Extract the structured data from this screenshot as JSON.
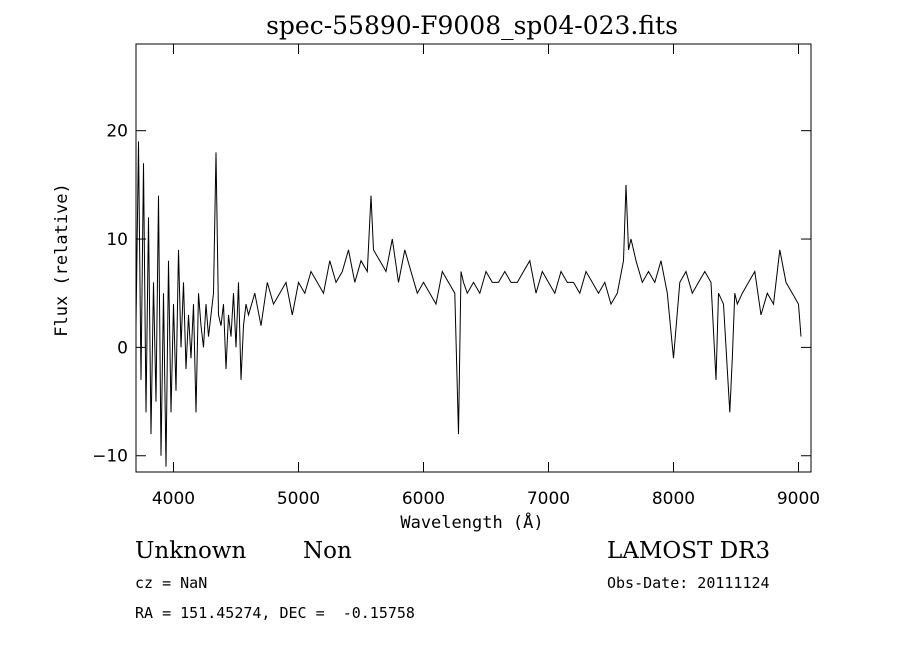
{
  "chart_data": {
    "type": "line",
    "title": "spec-55890-F9008_sp04-023.fits",
    "xlabel": "Wavelength (Å)",
    "ylabel": "Flux (relative)",
    "xlim": [
      3700,
      9100
    ],
    "ylim": [
      -11.5,
      28
    ],
    "xticks": [
      4000,
      5000,
      6000,
      7000,
      8000,
      9000
    ],
    "yticks": [
      -10,
      0,
      10,
      20
    ],
    "grid": false,
    "legend": "none",
    "line_color": "#000000",
    "x": [
      3700,
      3720,
      3740,
      3760,
      3780,
      3800,
      3820,
      3840,
      3860,
      3880,
      3900,
      3920,
      3940,
      3960,
      3980,
      4000,
      4020,
      4040,
      4060,
      4080,
      4100,
      4120,
      4140,
      4160,
      4180,
      4200,
      4220,
      4240,
      4260,
      4280,
      4300,
      4320,
      4340,
      4360,
      4380,
      4400,
      4420,
      4440,
      4460,
      4480,
      4500,
      4520,
      4540,
      4560,
      4580,
      4600,
      4650,
      4700,
      4750,
      4800,
      4850,
      4900,
      4950,
      5000,
      5050,
      5100,
      5150,
      5200,
      5250,
      5300,
      5350,
      5400,
      5450,
      5500,
      5550,
      5580,
      5600,
      5650,
      5700,
      5750,
      5800,
      5850,
      5900,
      5950,
      6000,
      6050,
      6100,
      6150,
      6200,
      6250,
      6280,
      6300,
      6320,
      6350,
      6400,
      6450,
      6500,
      6550,
      6600,
      6650,
      6700,
      6750,
      6800,
      6850,
      6900,
      6950,
      7000,
      7050,
      7100,
      7150,
      7200,
      7250,
      7300,
      7350,
      7400,
      7450,
      7500,
      7550,
      7600,
      7620,
      7640,
      7660,
      7700,
      7750,
      7800,
      7850,
      7900,
      7950,
      8000,
      8050,
      8100,
      8150,
      8200,
      8250,
      8300,
      8340,
      8360,
      8400,
      8450,
      8470,
      8490,
      8510,
      8550,
      8600,
      8650,
      8700,
      8750,
      8800,
      8850,
      8900,
      8950,
      9000,
      9020
    ],
    "y": [
      2,
      19,
      -3,
      17,
      -6,
      12,
      -8,
      6,
      -5,
      14,
      -10,
      5,
      -11,
      8,
      -6,
      4,
      -4,
      9,
      0,
      6,
      -2,
      3,
      -1,
      4,
      -6,
      5,
      2,
      0,
      4,
      1,
      3,
      5,
      18,
      3,
      2,
      4,
      -2,
      3,
      1,
      5,
      0,
      6,
      -3,
      2,
      4,
      3,
      5,
      2,
      6,
      4,
      5,
      6,
      3,
      6,
      5,
      7,
      6,
      5,
      8,
      6,
      7,
      9,
      6,
      8,
      7,
      14,
      9,
      8,
      7,
      10,
      6,
      9,
      7,
      5,
      6,
      5,
      4,
      7,
      6,
      5,
      -8,
      7,
      6,
      5,
      6,
      5,
      7,
      6,
      6,
      7,
      6,
      6,
      7,
      8,
      5,
      7,
      6,
      5,
      7,
      6,
      6,
      5,
      7,
      6,
      5,
      6,
      4,
      5,
      8,
      15,
      9,
      10,
      8,
      6,
      7,
      6,
      8,
      5,
      -1,
      6,
      7,
      5,
      6,
      7,
      6,
      -3,
      5,
      4,
      -6,
      -1,
      5,
      4,
      5,
      6,
      7,
      3,
      5,
      4,
      9,
      6,
      5,
      4,
      1
    ]
  },
  "info": {
    "class_label": "Unknown",
    "subclass_label": "Non",
    "survey": "LAMOST DR3",
    "cz": "cz = NaN",
    "obs_date": "Obs-Date: 20111124",
    "coords": "RA = 151.45274, DEC =  -0.15758"
  }
}
